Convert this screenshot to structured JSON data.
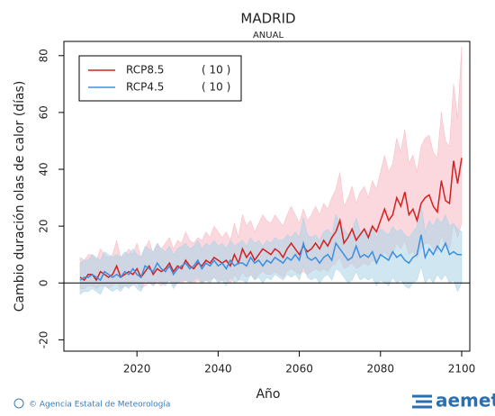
{
  "chart_data": {
    "type": "line",
    "title": "MADRID",
    "subtitle": "ANUAL",
    "x_label": "Año",
    "y_label": "Cambio duración olas de calor (días)",
    "xlim": [
      2002,
      2102
    ],
    "xticks": [
      2020,
      2040,
      2060,
      2080,
      2100
    ],
    "ylim": [
      -24,
      85
    ],
    "yticks": [
      -20,
      0,
      20,
      40,
      60,
      80
    ],
    "legend": "top-left",
    "x": [
      2006,
      2007,
      2008,
      2009,
      2010,
      2011,
      2012,
      2013,
      2014,
      2015,
      2016,
      2017,
      2018,
      2019,
      2020,
      2021,
      2022,
      2023,
      2024,
      2025,
      2026,
      2027,
      2028,
      2029,
      2030,
      2031,
      2032,
      2033,
      2034,
      2035,
      2036,
      2037,
      2038,
      2039,
      2040,
      2041,
      2042,
      2043,
      2044,
      2045,
      2046,
      2047,
      2048,
      2049,
      2050,
      2051,
      2052,
      2053,
      2054,
      2055,
      2056,
      2057,
      2058,
      2059,
      2060,
      2061,
      2062,
      2063,
      2064,
      2065,
      2066,
      2067,
      2068,
      2069,
      2070,
      2071,
      2072,
      2073,
      2074,
      2075,
      2076,
      2077,
      2078,
      2079,
      2080,
      2081,
      2082,
      2083,
      2084,
      2085,
      2086,
      2087,
      2088,
      2089,
      2090,
      2091,
      2092,
      2093,
      2094,
      2095,
      2096,
      2097,
      2098,
      2099,
      2100
    ],
    "series": [
      {
        "name": "RCP8.5",
        "count_label": "( 10 )",
        "color": "#d62020",
        "band_color": "#f5b8c2",
        "values": [
          2,
          1,
          3,
          3,
          1,
          4,
          3,
          2,
          3,
          6,
          2,
          3,
          4,
          3,
          5,
          2,
          4,
          6,
          3,
          5,
          4,
          5,
          7,
          4,
          6,
          5,
          8,
          6,
          5,
          7,
          6,
          8,
          7,
          9,
          8,
          7,
          8,
          6,
          10,
          7,
          12,
          9,
          11,
          8,
          10,
          12,
          11,
          10,
          12,
          11,
          9,
          12,
          14,
          12,
          10,
          13,
          11,
          12,
          14,
          12,
          15,
          13,
          16,
          18,
          22,
          14,
          16,
          19,
          15,
          17,
          19,
          16,
          20,
          18,
          22,
          26,
          22,
          24,
          30,
          27,
          32,
          24,
          26,
          22,
          28,
          30,
          31,
          27,
          25,
          36,
          29,
          28,
          43,
          35,
          44
        ],
        "lower": [
          -2,
          -2,
          -1,
          -1,
          -2,
          -1,
          -1,
          -2,
          -1,
          0,
          -2,
          -1,
          -1,
          -1,
          0,
          -2,
          -1,
          0,
          -1,
          0,
          -1,
          0,
          1,
          -1,
          0,
          0,
          1,
          0,
          0,
          1,
          0,
          1,
          1,
          2,
          1,
          1,
          1,
          0,
          3,
          1,
          4,
          2,
          3,
          1,
          3,
          4,
          3,
          3,
          4,
          3,
          2,
          4,
          5,
          4,
          3,
          4,
          3,
          4,
          5,
          4,
          5,
          4,
          6,
          7,
          9,
          5,
          6,
          7,
          5,
          6,
          7,
          6,
          8,
          7,
          9,
          11,
          9,
          10,
          14,
          12,
          15,
          10,
          11,
          9,
          12,
          14,
          14,
          12,
          11,
          17,
          13,
          12,
          21,
          16,
          21
        ],
        "upper": [
          9,
          8,
          10,
          10,
          8,
          12,
          10,
          9,
          10,
          15,
          9,
          10,
          12,
          10,
          14,
          9,
          12,
          15,
          10,
          14,
          12,
          14,
          16,
          12,
          15,
          14,
          18,
          15,
          14,
          16,
          15,
          18,
          16,
          20,
          18,
          16,
          18,
          15,
          21,
          16,
          24,
          20,
          22,
          18,
          21,
          24,
          22,
          21,
          24,
          22,
          20,
          24,
          27,
          24,
          21,
          26,
          22,
          24,
          27,
          24,
          28,
          26,
          30,
          33,
          39,
          27,
          30,
          34,
          28,
          32,
          34,
          30,
          36,
          33,
          39,
          45,
          39,
          42,
          51,
          46,
          54,
          42,
          45,
          39,
          48,
          51,
          52,
          46,
          44,
          60,
          50,
          48,
          70,
          58,
          83
        ]
      },
      {
        "name": "RCP4.5",
        "count_label": "( 10 )",
        "color": "#3a8fe0",
        "band_color": "#a9d3e8",
        "values": [
          1,
          2,
          2,
          3,
          2,
          1,
          4,
          3,
          2,
          3,
          2,
          4,
          3,
          5,
          3,
          2,
          6,
          5,
          4,
          7,
          5,
          4,
          6,
          3,
          5,
          6,
          7,
          5,
          6,
          8,
          5,
          7,
          6,
          8,
          6,
          7,
          5,
          8,
          6,
          7,
          7,
          6,
          9,
          7,
          8,
          6,
          8,
          7,
          9,
          8,
          7,
          9,
          8,
          10,
          8,
          14,
          9,
          8,
          9,
          7,
          9,
          10,
          8,
          14,
          12,
          10,
          8,
          9,
          13,
          9,
          10,
          9,
          11,
          7,
          10,
          9,
          8,
          11,
          9,
          10,
          8,
          7,
          9,
          10,
          17,
          9,
          12,
          10,
          13,
          11,
          14,
          10,
          11,
          10,
          10
        ],
        "lower": [
          -4,
          -3,
          -3,
          -2,
          -3,
          -4,
          -1,
          -2,
          -3,
          -2,
          -3,
          -1,
          -2,
          0,
          -2,
          -3,
          1,
          0,
          -1,
          1,
          0,
          -1,
          1,
          -2,
          0,
          1,
          1,
          0,
          1,
          2,
          0,
          1,
          0,
          2,
          0,
          1,
          -1,
          2,
          0,
          1,
          1,
          0,
          3,
          1,
          2,
          0,
          2,
          1,
          3,
          2,
          1,
          3,
          2,
          3,
          1,
          6,
          2,
          1,
          2,
          0,
          2,
          3,
          1,
          5,
          4,
          2,
          0,
          1,
          4,
          1,
          2,
          1,
          2,
          -1,
          1,
          0,
          -1,
          2,
          0,
          1,
          -1,
          -2,
          0,
          1,
          6,
          0,
          2,
          0,
          3,
          1,
          3,
          0,
          1,
          -3,
          0
        ],
        "upper": [
          7,
          8,
          8,
          10,
          9,
          8,
          11,
          10,
          9,
          10,
          9,
          11,
          10,
          12,
          10,
          9,
          13,
          12,
          11,
          14,
          12,
          11,
          13,
          10,
          12,
          13,
          14,
          12,
          13,
          15,
          12,
          14,
          13,
          15,
          13,
          14,
          12,
          15,
          13,
          14,
          15,
          13,
          16,
          14,
          15,
          13,
          15,
          14,
          16,
          15,
          15,
          17,
          16,
          18,
          16,
          23,
          17,
          16,
          17,
          15,
          18,
          19,
          17,
          24,
          21,
          19,
          17,
          18,
          23,
          18,
          19,
          18,
          20,
          16,
          19,
          18,
          17,
          20,
          18,
          19,
          17,
          16,
          18,
          20,
          28,
          18,
          22,
          20,
          23,
          21,
          24,
          20,
          21,
          19,
          18
        ]
      }
    ]
  },
  "footer": {
    "credit": "© Agencia Estatal de Meteorología",
    "logo": "aemet"
  }
}
